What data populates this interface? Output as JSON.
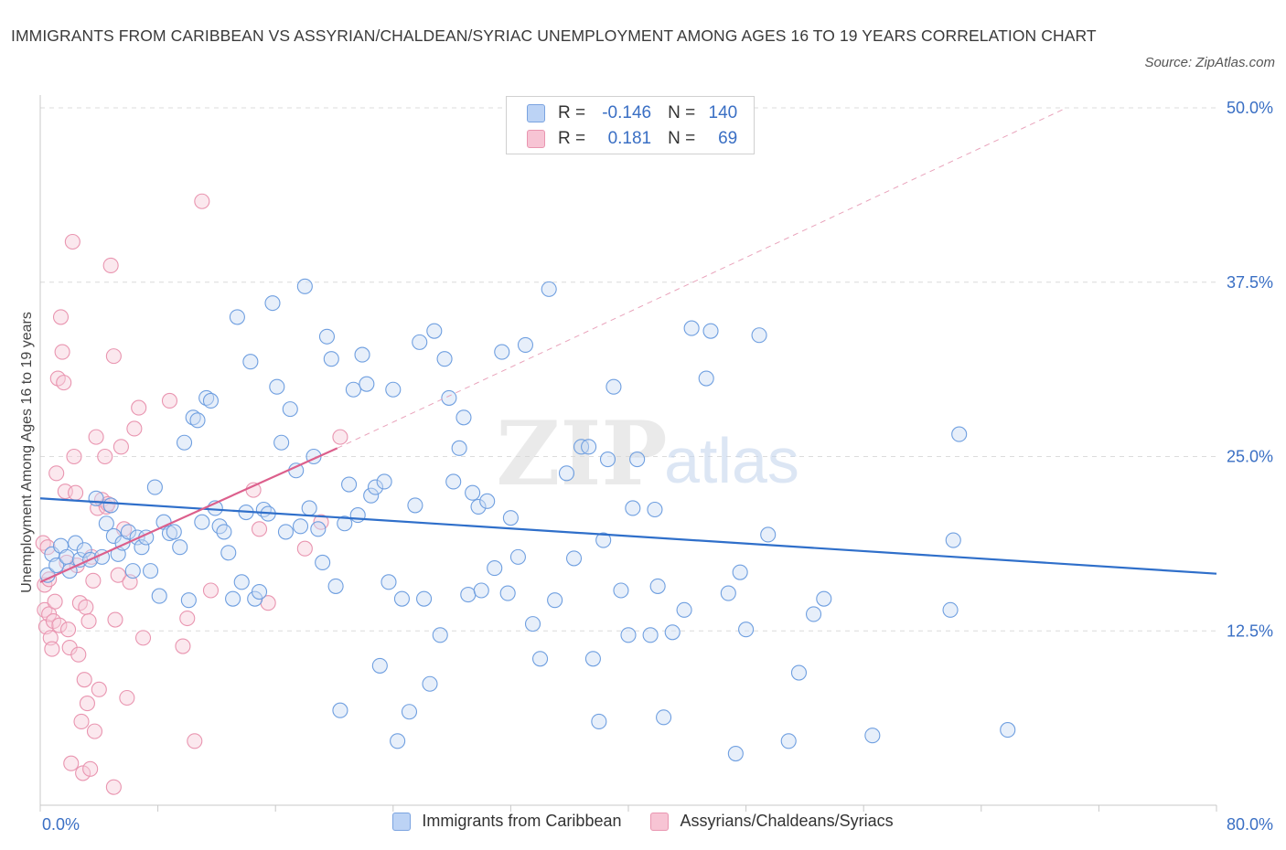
{
  "header": {
    "title": "IMMIGRANTS FROM CARIBBEAN VS ASSYRIAN/CHALDEAN/SYRIAC UNEMPLOYMENT AMONG AGES 16 TO 19 YEARS CORRELATION CHART",
    "source": "Source: ZipAtlas.com"
  },
  "legend_top": {
    "rows": [
      {
        "r_label": "R =",
        "r_value": "-0.146",
        "n_label": "N =",
        "n_value": "140",
        "fill": "#bcd3f5",
        "stroke": "#7aa3e0"
      },
      {
        "r_label": "R =",
        "r_value": "0.181",
        "n_label": "N =",
        "n_value": "69",
        "fill": "#f7c4d4",
        "stroke": "#e995b0"
      }
    ]
  },
  "watermark": {
    "zip": "ZIP",
    "atlas": "atlas"
  },
  "chart_data": {
    "type": "scatter",
    "title": "IMMIGRANTS FROM CARIBBEAN VS ASSYRIAN/CHALDEAN/SYRIAC UNEMPLOYMENT AMONG AGES 16 TO 19 YEARS CORRELATION CHART",
    "xlabel": "",
    "ylabel": "Unemployment Among Ages 16 to 19 years",
    "xlim": [
      0,
      80
    ],
    "ylim": [
      0,
      50
    ],
    "x_tick_labels": [
      "0.0%",
      "80.0%"
    ],
    "y_tick_labels": [
      "12.5%",
      "25.0%",
      "37.5%",
      "50.0%"
    ],
    "y_ticks": [
      12.5,
      25,
      37.5,
      50
    ],
    "grid": true,
    "legend_placement": "bottom-center",
    "series": [
      {
        "name": "Immigrants from Caribbean",
        "color": "#6f9fe0",
        "fill": "#c9dbf5",
        "trend": {
          "x": [
            0,
            80
          ],
          "y": [
            22.0,
            16.6
          ],
          "color": "#2f6fca"
        },
        "points": [
          [
            0.5,
            16.5
          ],
          [
            0.8,
            18.0
          ],
          [
            1.1,
            17.2
          ],
          [
            1.4,
            18.6
          ],
          [
            1.8,
            17.8
          ],
          [
            2.0,
            16.8
          ],
          [
            2.4,
            18.8
          ],
          [
            2.7,
            17.6
          ],
          [
            3.0,
            18.3
          ],
          [
            3.4,
            17.6
          ],
          [
            3.8,
            22.0
          ],
          [
            4.2,
            17.8
          ],
          [
            4.5,
            20.2
          ],
          [
            4.8,
            21.5
          ],
          [
            5.0,
            19.3
          ],
          [
            5.3,
            18.0
          ],
          [
            5.6,
            18.8
          ],
          [
            6.0,
            19.6
          ],
          [
            6.3,
            16.8
          ],
          [
            6.6,
            19.2
          ],
          [
            6.9,
            18.5
          ],
          [
            7.2,
            19.2
          ],
          [
            7.5,
            16.8
          ],
          [
            7.8,
            22.8
          ],
          [
            8.1,
            15.0
          ],
          [
            8.4,
            20.3
          ],
          [
            8.8,
            19.5
          ],
          [
            9.1,
            19.6
          ],
          [
            9.5,
            18.5
          ],
          [
            9.8,
            26.0
          ],
          [
            10.1,
            14.7
          ],
          [
            10.4,
            27.8
          ],
          [
            10.7,
            27.6
          ],
          [
            11.0,
            20.3
          ],
          [
            11.3,
            29.2
          ],
          [
            11.6,
            29.0
          ],
          [
            11.9,
            21.3
          ],
          [
            12.2,
            20.0
          ],
          [
            12.5,
            19.6
          ],
          [
            12.8,
            18.1
          ],
          [
            13.1,
            14.8
          ],
          [
            13.4,
            35.0
          ],
          [
            13.7,
            16.0
          ],
          [
            14.0,
            21.0
          ],
          [
            14.3,
            31.8
          ],
          [
            14.6,
            14.8
          ],
          [
            14.9,
            15.3
          ],
          [
            15.2,
            21.2
          ],
          [
            15.5,
            20.9
          ],
          [
            15.8,
            36.0
          ],
          [
            16.1,
            30.0
          ],
          [
            16.4,
            26.0
          ],
          [
            16.7,
            19.6
          ],
          [
            17.0,
            28.4
          ],
          [
            17.4,
            24.0
          ],
          [
            17.7,
            20.0
          ],
          [
            18.0,
            37.2
          ],
          [
            18.3,
            21.3
          ],
          [
            18.6,
            25.0
          ],
          [
            18.9,
            19.8
          ],
          [
            19.2,
            17.4
          ],
          [
            19.5,
            33.6
          ],
          [
            19.8,
            32.0
          ],
          [
            20.1,
            15.7
          ],
          [
            20.4,
            6.8
          ],
          [
            20.7,
            20.2
          ],
          [
            21.0,
            23.0
          ],
          [
            21.3,
            29.8
          ],
          [
            21.6,
            20.8
          ],
          [
            21.9,
            32.3
          ],
          [
            22.2,
            30.2
          ],
          [
            22.5,
            22.2
          ],
          [
            22.8,
            22.8
          ],
          [
            23.1,
            10.0
          ],
          [
            23.4,
            23.2
          ],
          [
            23.7,
            16.0
          ],
          [
            24.0,
            29.8
          ],
          [
            24.3,
            4.6
          ],
          [
            24.6,
            14.8
          ],
          [
            25.1,
            6.7
          ],
          [
            25.5,
            21.5
          ],
          [
            25.8,
            33.2
          ],
          [
            26.1,
            14.8
          ],
          [
            26.5,
            8.7
          ],
          [
            26.8,
            34.0
          ],
          [
            27.2,
            12.2
          ],
          [
            27.5,
            32.0
          ],
          [
            27.8,
            29.2
          ],
          [
            28.1,
            23.2
          ],
          [
            28.5,
            25.6
          ],
          [
            28.8,
            27.8
          ],
          [
            29.1,
            15.1
          ],
          [
            29.4,
            22.4
          ],
          [
            29.8,
            21.4
          ],
          [
            30.0,
            15.4
          ],
          [
            30.4,
            21.8
          ],
          [
            30.9,
            17.0
          ],
          [
            31.4,
            32.5
          ],
          [
            31.8,
            15.2
          ],
          [
            32.0,
            20.6
          ],
          [
            32.5,
            17.8
          ],
          [
            33.0,
            33.0
          ],
          [
            33.5,
            13.0
          ],
          [
            34.0,
            10.5
          ],
          [
            34.6,
            37.0
          ],
          [
            35.0,
            14.7
          ],
          [
            35.8,
            23.8
          ],
          [
            36.3,
            17.7
          ],
          [
            36.8,
            25.7
          ],
          [
            37.3,
            25.7
          ],
          [
            37.6,
            10.5
          ],
          [
            38.0,
            6.0
          ],
          [
            38.3,
            19.0
          ],
          [
            38.6,
            24.8
          ],
          [
            39.0,
            30.0
          ],
          [
            39.5,
            15.4
          ],
          [
            40.0,
            12.2
          ],
          [
            40.3,
            21.3
          ],
          [
            40.6,
            24.8
          ],
          [
            41.5,
            12.2
          ],
          [
            41.8,
            21.2
          ],
          [
            42.0,
            15.7
          ],
          [
            42.4,
            6.3
          ],
          [
            43.0,
            12.4
          ],
          [
            43.8,
            14.0
          ],
          [
            44.3,
            34.2
          ],
          [
            45.3,
            30.6
          ],
          [
            45.6,
            34.0
          ],
          [
            46.8,
            15.2
          ],
          [
            47.3,
            3.7
          ],
          [
            47.6,
            16.7
          ],
          [
            48.0,
            12.6
          ],
          [
            48.9,
            33.7
          ],
          [
            49.5,
            19.4
          ],
          [
            50.9,
            4.6
          ],
          [
            51.6,
            9.5
          ],
          [
            52.6,
            13.7
          ],
          [
            53.3,
            14.8
          ],
          [
            56.6,
            5.0
          ],
          [
            61.9,
            14.0
          ],
          [
            62.1,
            19.0
          ],
          [
            62.5,
            26.6
          ],
          [
            65.8,
            5.4
          ]
        ]
      },
      {
        "name": "Assyrians/Chaldeans/Syriacs",
        "color": "#e995b0",
        "fill": "#f7cbd9",
        "trend": {
          "x": [
            0,
            20.2
          ],
          "y": [
            16.0,
            25.6
          ],
          "color": "#dc5f8c",
          "dashed_extension": {
            "x": [
              20.2,
              69.8
            ],
            "y": [
              25.6,
              50.0
            ]
          }
        },
        "points": [
          [
            0.2,
            18.8
          ],
          [
            0.3,
            15.8
          ],
          [
            0.3,
            14.0
          ],
          [
            0.4,
            12.8
          ],
          [
            0.5,
            18.5
          ],
          [
            0.6,
            16.2
          ],
          [
            0.6,
            13.7
          ],
          [
            0.7,
            12.0
          ],
          [
            0.8,
            11.2
          ],
          [
            0.9,
            13.2
          ],
          [
            1.0,
            14.6
          ],
          [
            1.1,
            23.8
          ],
          [
            1.2,
            30.6
          ],
          [
            1.3,
            12.9
          ],
          [
            1.4,
            35.0
          ],
          [
            1.5,
            32.5
          ],
          [
            1.6,
            30.3
          ],
          [
            1.7,
            22.5
          ],
          [
            1.8,
            17.4
          ],
          [
            1.9,
            12.6
          ],
          [
            2.0,
            11.3
          ],
          [
            2.1,
            3.0
          ],
          [
            2.2,
            40.4
          ],
          [
            2.3,
            25.0
          ],
          [
            2.4,
            22.4
          ],
          [
            2.5,
            17.2
          ],
          [
            2.6,
            10.8
          ],
          [
            2.7,
            14.5
          ],
          [
            2.8,
            6.0
          ],
          [
            2.9,
            2.3
          ],
          [
            3.0,
            9.0
          ],
          [
            3.1,
            14.2
          ],
          [
            3.2,
            7.3
          ],
          [
            3.3,
            13.2
          ],
          [
            3.4,
            2.6
          ],
          [
            3.5,
            17.8
          ],
          [
            3.6,
            16.1
          ],
          [
            3.7,
            5.3
          ],
          [
            3.8,
            26.4
          ],
          [
            3.9,
            21.3
          ],
          [
            4.0,
            8.3
          ],
          [
            4.2,
            21.9
          ],
          [
            4.4,
            25.0
          ],
          [
            4.5,
            21.4
          ],
          [
            4.6,
            21.6
          ],
          [
            4.8,
            38.7
          ],
          [
            5.0,
            32.2
          ],
          [
            5.0,
            1.3
          ],
          [
            5.1,
            13.3
          ],
          [
            5.3,
            16.5
          ],
          [
            5.5,
            25.7
          ],
          [
            5.7,
            19.8
          ],
          [
            5.9,
            7.7
          ],
          [
            6.1,
            16.0
          ],
          [
            6.4,
            27.0
          ],
          [
            6.7,
            28.5
          ],
          [
            7.0,
            12.0
          ],
          [
            8.8,
            29.0
          ],
          [
            9.7,
            11.4
          ],
          [
            10.0,
            13.4
          ],
          [
            10.5,
            4.6
          ],
          [
            11.0,
            43.3
          ],
          [
            11.6,
            15.4
          ],
          [
            14.5,
            22.6
          ],
          [
            14.9,
            19.8
          ],
          [
            15.5,
            14.5
          ],
          [
            18.0,
            18.4
          ],
          [
            19.1,
            20.3
          ],
          [
            20.4,
            26.4
          ]
        ]
      }
    ]
  },
  "legend_bottom": [
    {
      "label": "Immigrants from Caribbean",
      "fill": "#bcd3f5",
      "stroke": "#7aa3e0"
    },
    {
      "label": "Assyrians/Chaldeans/Syriacs",
      "fill": "#f7c4d4",
      "stroke": "#e995b0"
    }
  ]
}
